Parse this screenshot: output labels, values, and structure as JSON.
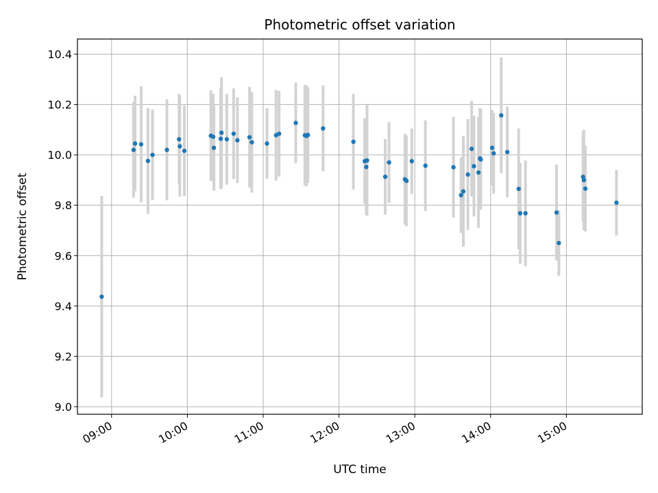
{
  "chart_data": {
    "type": "scatter",
    "title": "Photometric offset variation",
    "xlabel": "UTC time",
    "ylabel": "Photometric offset",
    "grid": true,
    "xlim": [
      8.55,
      16.0
    ],
    "ylim": [
      8.97,
      10.46
    ],
    "x_ticks": [
      9,
      10,
      11,
      12,
      13,
      14,
      15
    ],
    "x_tick_labels": [
      "09:00",
      "10:00",
      "11:00",
      "12:00",
      "13:00",
      "14:00",
      "15:00"
    ],
    "y_ticks": [
      9.0,
      9.2,
      9.4,
      9.6,
      9.8,
      10.0,
      10.2,
      10.4
    ],
    "y_tick_labels": [
      "9.0",
      "9.2",
      "9.4",
      "9.6",
      "9.8",
      "10.0",
      "10.2",
      "10.4"
    ],
    "colors": {
      "point": "#1f77b4",
      "errorbar": "#d3d3d3",
      "grid": "#b0b0b0"
    },
    "series": [
      {
        "name": "offset",
        "x": [
          8.87,
          9.29,
          9.31,
          9.39,
          9.48,
          9.54,
          9.73,
          9.89,
          9.9,
          9.96,
          10.31,
          10.34,
          10.35,
          10.44,
          10.45,
          10.52,
          10.61,
          10.66,
          10.82,
          10.85,
          11.05,
          11.17,
          11.21,
          11.43,
          11.55,
          11.57,
          11.59,
          11.79,
          12.19,
          12.34,
          12.36,
          12.37,
          12.61,
          12.66,
          12.87,
          12.89,
          12.96,
          13.14,
          13.51,
          13.61,
          13.64,
          13.7,
          13.75,
          13.78,
          13.84,
          13.86,
          13.87,
          14.02,
          14.04,
          14.14,
          14.22,
          14.37,
          14.39,
          14.46,
          14.87,
          14.9,
          15.22,
          15.23,
          15.25,
          15.66
        ],
        "y": [
          9.437,
          10.02,
          10.045,
          10.042,
          9.976,
          10.0,
          10.02,
          10.062,
          10.034,
          10.016,
          10.076,
          10.072,
          10.028,
          10.064,
          10.088,
          10.062,
          10.084,
          10.058,
          10.07,
          10.05,
          10.045,
          10.078,
          10.084,
          10.127,
          10.078,
          10.075,
          10.079,
          10.105,
          10.052,
          9.975,
          9.952,
          9.978,
          9.913,
          9.97,
          9.903,
          9.897,
          9.975,
          9.957,
          9.951,
          9.84,
          9.855,
          9.922,
          10.024,
          9.955,
          9.93,
          9.986,
          9.982,
          10.028,
          10.006,
          10.157,
          10.011,
          9.865,
          9.768,
          9.768,
          9.771,
          9.65,
          9.913,
          9.9,
          9.866,
          9.81
        ],
        "err": [
          0.4,
          0.19,
          0.19,
          0.23,
          0.21,
          0.18,
          0.2,
          0.18,
          0.2,
          0.18,
          0.18,
          0.17,
          0.17,
          0.2,
          0.22,
          0.18,
          0.18,
          0.17,
          0.2,
          0.2,
          0.14,
          0.18,
          0.17,
          0.16,
          0.2,
          0.2,
          0.19,
          0.17,
          0.19,
          0.17,
          0.19,
          0.22,
          0.15,
          0.16,
          0.18,
          0.18,
          0.13,
          0.18,
          0.2,
          0.15,
          0.22,
          0.22,
          0.19,
          0.2,
          0.22,
          0.2,
          0.2,
          0.15,
          0.16,
          0.23,
          0.18,
          0.24,
          0.2,
          0.21,
          0.19,
          0.13,
          0.18,
          0.2,
          0.17,
          0.13
        ]
      }
    ]
  }
}
